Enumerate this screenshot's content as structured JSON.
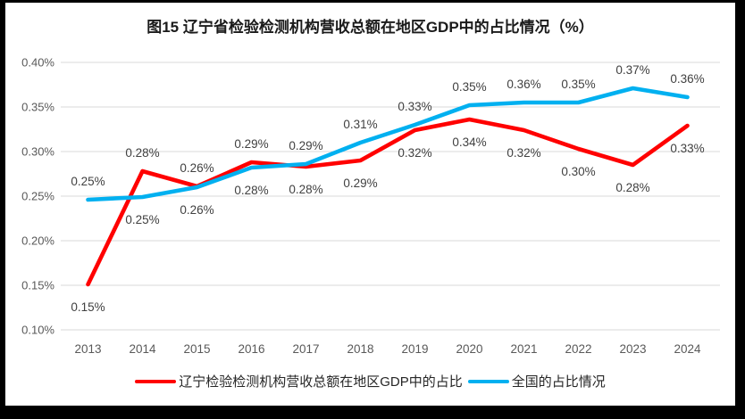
{
  "chart_data": {
    "type": "line",
    "title": "图15 辽宁省检验检测机构营收总额在地区GDP中的占比情况（%）",
    "categories": [
      "2013",
      "2014",
      "2015",
      "2016",
      "2017",
      "2018",
      "2019",
      "2020",
      "2021",
      "2022",
      "2023",
      "2024"
    ],
    "series": [
      {
        "name": "辽宁检验检测机构营收总额在地区GDP中的占比",
        "color": "#FF0000",
        "values": [
          0.15,
          0.28,
          0.26,
          0.29,
          0.28,
          0.29,
          0.32,
          0.34,
          0.32,
          0.3,
          0.28,
          0.33
        ],
        "labels": [
          "0.15%",
          "0.28%",
          "0.26%",
          "0.29%",
          "0.28%",
          "0.29%",
          "0.32%",
          "0.34%",
          "0.32%",
          "0.30%",
          "0.28%",
          "0.33%"
        ],
        "plot_values": [
          0.151,
          0.278,
          0.261,
          0.288,
          0.283,
          0.29,
          0.324,
          0.336,
          0.324,
          0.303,
          0.285,
          0.329
        ]
      },
      {
        "name": "全国的占比情况",
        "color": "#00B0F0",
        "values": [
          0.25,
          0.25,
          0.26,
          0.28,
          0.29,
          0.31,
          0.33,
          0.35,
          0.36,
          0.35,
          0.37,
          0.36
        ],
        "labels": [
          "0.25%",
          "0.25%",
          "0.26%",
          "0.28%",
          "0.29%",
          "0.31%",
          "0.33%",
          "0.35%",
          "0.36%",
          "0.35%",
          "0.37%",
          "0.36%"
        ],
        "plot_values": [
          0.246,
          0.249,
          0.26,
          0.282,
          0.286,
          0.31,
          0.33,
          0.352,
          0.355,
          0.355,
          0.371,
          0.361
        ]
      }
    ],
    "y_axis": {
      "min": 0.1,
      "max": 0.4,
      "ticks": [
        "0.40%",
        "0.35%",
        "0.30%",
        "0.25%",
        "0.20%",
        "0.15%",
        "0.10%"
      ]
    },
    "grid": true,
    "legend_position": "bottom",
    "colors": {
      "gridline": "#D9D9D9",
      "axis_text": "#595959",
      "data_label_text": "#404040"
    }
  }
}
